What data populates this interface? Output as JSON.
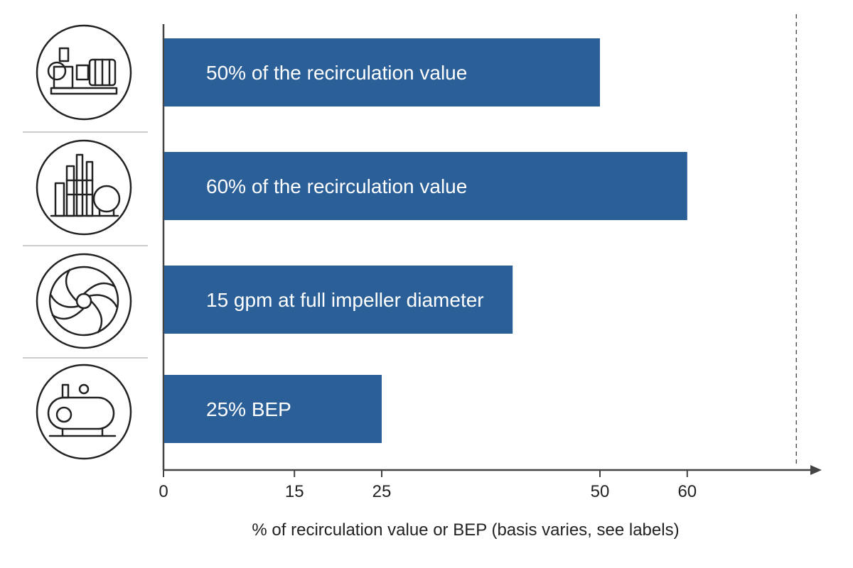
{
  "chart_data": {
    "type": "bar",
    "orientation": "horizontal",
    "categories": [
      "50% of the recirculation value",
      "60% of the recirculation value",
      "15 gpm at full impeller diameter",
      "25% BEP"
    ],
    "values": [
      50,
      60,
      40,
      25
    ],
    "bar_labels": [
      "50% of the recirculation value",
      "60% of the recirculation value",
      "15 gpm at full impeller diameter",
      "25% BEP"
    ],
    "row_icons": [
      "centrifugal-pump-icon",
      "refinery-plant-icon",
      "impeller-icon",
      "boiler-tank-icon"
    ],
    "xticks": [
      0,
      15,
      25,
      50,
      60
    ],
    "xlabel": "% of recirculation value or BEP (basis varies, see labels)",
    "xlim": [
      0,
      72.5
    ],
    "reference_line": 72.5,
    "grid": false,
    "legend": "none",
    "colors": {
      "bar": "#2b5f98",
      "axis": "#444444",
      "separator": "#bbbbbb"
    }
  }
}
